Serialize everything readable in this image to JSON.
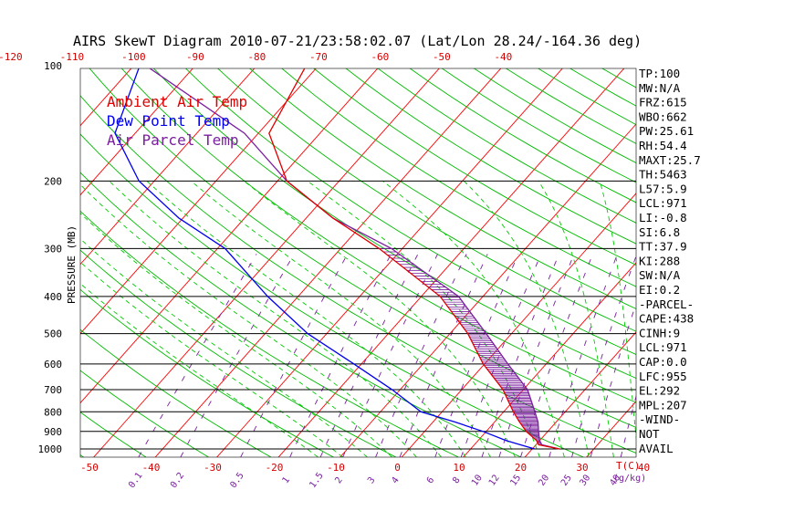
{
  "chart_data": {
    "type": "skew-t",
    "title": "AIRS SkewT Diagram 2010-07-21/23:58:02.07 (Lat/Lon 28.24/-164.36 deg)",
    "ylabel": "PRESSURE (MB)",
    "xlabel_right": "T(C)",
    "mixing_label": "(g/kg)",
    "pressure_levels": [
      100,
      200,
      300,
      400,
      500,
      600,
      700,
      800,
      900,
      1000
    ],
    "top_temp_ticks": [
      -120,
      -110,
      -100,
      -90,
      -80,
      -70,
      -60,
      -50,
      -40
    ],
    "bottom_temp_ticks": [
      -50,
      -40,
      -30,
      -20,
      -10,
      0,
      10,
      20,
      30,
      40
    ],
    "mixing_ratio_ticks": [
      "0.1",
      "0.2",
      "0.5",
      "1",
      "1.5",
      "2",
      "3",
      "4",
      "6",
      "8",
      "10",
      "12",
      "15",
      "20",
      "25",
      "30",
      "40"
    ],
    "legend": [
      {
        "name": "Ambient Air Temp",
        "color": "#e00000"
      },
      {
        "name": "Dew Point Temp",
        "color": "#0000ee"
      },
      {
        "name": "Air Parcel Temp",
        "color": "#7a1e9e"
      }
    ],
    "ambient_temp": {
      "p": [
        1000,
        975,
        950,
        900,
        850,
        800,
        700,
        600,
        500,
        400,
        300,
        250,
        200,
        150,
        100
      ],
      "t": [
        26,
        22,
        21,
        18,
        15.5,
        13,
        8,
        1,
        -6,
        -16,
        -33,
        -45,
        -58,
        -68,
        -72
      ]
    },
    "dewpoint": {
      "p": [
        1000,
        975,
        950,
        900,
        850,
        800,
        700,
        600,
        500,
        400,
        300,
        250,
        200,
        150,
        100
      ],
      "t": [
        22,
        19,
        16,
        11,
        5,
        -2,
        -10,
        -20,
        -32,
        -44,
        -58,
        -70,
        -82,
        -93,
        -99
      ]
    },
    "parcel_temp": {
      "p": [
        1000,
        975,
        950,
        900,
        850,
        800,
        700,
        600,
        500,
        400,
        300,
        250,
        200,
        150,
        100
      ],
      "t": [
        26,
        22.5,
        21.5,
        20,
        18.5,
        16.5,
        12,
        5,
        -3,
        -13,
        -31,
        -45,
        -58,
        -72,
        -98
      ]
    },
    "indices": [
      "TP:100",
      "MW:N/A",
      "FRZ:615",
      "WBO:662",
      "PW:25.61",
      "RH:54.4",
      "MAXT:25.7",
      "TH:5463",
      "L57:5.9",
      "LCL:971",
      "LI:-0.8",
      "SI:6.8",
      "TT:37.9",
      "KI:288",
      "SW:N/A",
      "EI:0.2",
      "-PARCEL-",
      "CAPE:438",
      "CINH:9",
      "LCL:971",
      "CAP:0.0",
      "LFC:955",
      "EL:292",
      "MPL:207",
      "-WIND-",
      "NOT",
      "AVAIL"
    ],
    "colors": {
      "isotherm": "#ff0000",
      "dry_adiabat": "#00bb00",
      "moist_adiabat": "#00cc00",
      "mixing_ratio": "#7a1e9e",
      "isobar": "#000000"
    }
  }
}
